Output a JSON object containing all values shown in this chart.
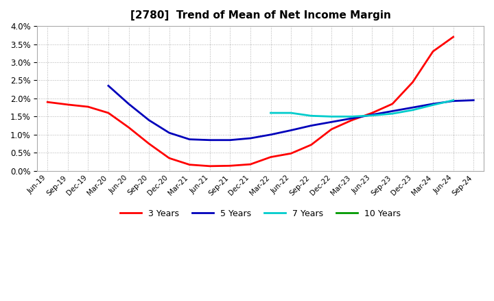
{
  "title": "[2780]  Trend of Mean of Net Income Margin",
  "background_color": "#ffffff",
  "plot_background_color": "#ffffff",
  "grid_color": "#b0b0b0",
  "ylim": [
    0.0,
    0.04
  ],
  "yticks": [
    0.0,
    0.005,
    0.01,
    0.015,
    0.02,
    0.025,
    0.03,
    0.035,
    0.04
  ],
  "x_labels": [
    "Jun-19",
    "Sep-19",
    "Dec-19",
    "Mar-20",
    "Jun-20",
    "Sep-20",
    "Dec-20",
    "Mar-21",
    "Jun-21",
    "Sep-21",
    "Dec-21",
    "Mar-22",
    "Jun-22",
    "Sep-22",
    "Dec-22",
    "Mar-23",
    "Jun-23",
    "Sep-23",
    "Dec-23",
    "Mar-24",
    "Jun-24",
    "Sep-24"
  ],
  "series_3yr_x": [
    0,
    1,
    2,
    3,
    4,
    5,
    6,
    7,
    8,
    9,
    10,
    11,
    12,
    13,
    14,
    15,
    16,
    17,
    18,
    19,
    20
  ],
  "series_3yr_y": [
    0.019,
    0.0183,
    0.0177,
    0.016,
    0.012,
    0.0075,
    0.0035,
    0.0017,
    0.0013,
    0.0014,
    0.0018,
    0.0038,
    0.0048,
    0.0072,
    0.0115,
    0.014,
    0.016,
    0.0185,
    0.0245,
    0.033,
    0.037
  ],
  "series_5yr_x": [
    3,
    4,
    5,
    6,
    7,
    8,
    9,
    10,
    11,
    12,
    13,
    14,
    15,
    16,
    17,
    18,
    19,
    20,
    21
  ],
  "series_5yr_y": [
    0.0235,
    0.0185,
    0.014,
    0.0105,
    0.0087,
    0.0085,
    0.0085,
    0.009,
    0.01,
    0.0112,
    0.0125,
    0.0135,
    0.0145,
    0.0155,
    0.0165,
    0.0175,
    0.0185,
    0.0193,
    0.0195
  ],
  "series_7yr_x": [
    11,
    12,
    13,
    14,
    15,
    16,
    17,
    18,
    19,
    20
  ],
  "series_7yr_y": [
    0.016,
    0.016,
    0.0152,
    0.015,
    0.015,
    0.0153,
    0.0158,
    0.0168,
    0.0182,
    0.0195
  ],
  "series_10yr_x": [],
  "series_10yr_y": [],
  "colors": {
    "3 Years": "#ff0000",
    "5 Years": "#0000bb",
    "7 Years": "#00cccc",
    "10 Years": "#009900"
  },
  "linewidth": 2.0,
  "legend_entries": [
    "3 Years",
    "5 Years",
    "7 Years",
    "10 Years"
  ],
  "legend_colors": [
    "#ff0000",
    "#0000bb",
    "#00cccc",
    "#009900"
  ]
}
